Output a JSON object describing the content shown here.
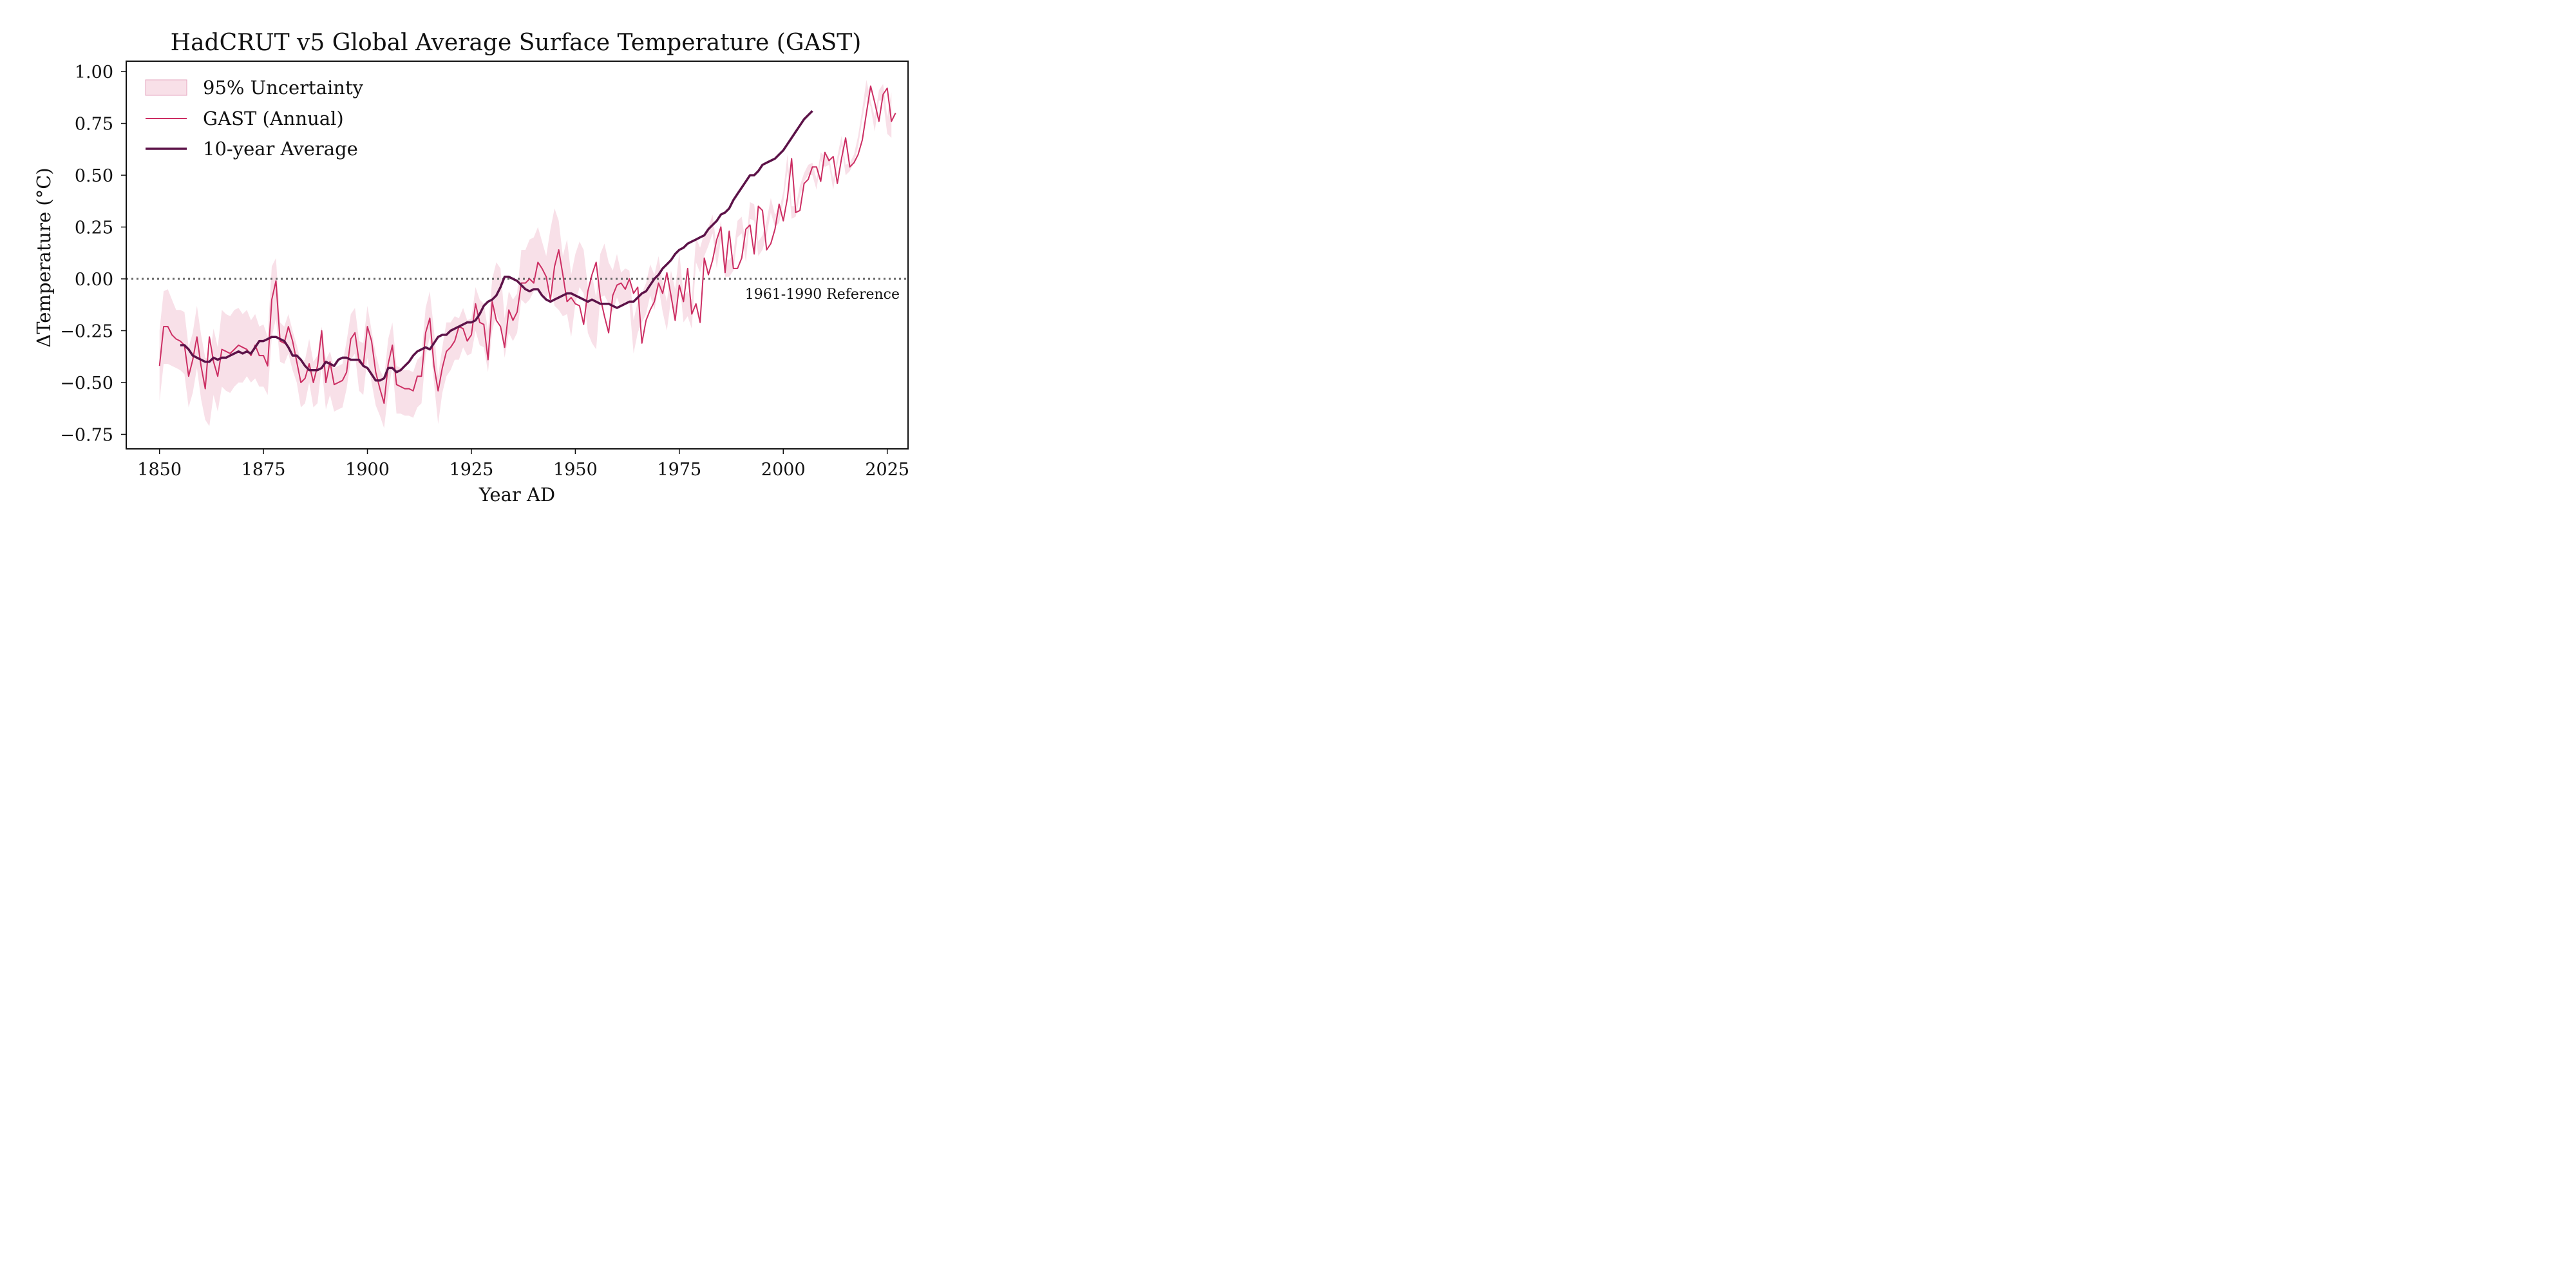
{
  "chart_data": {
    "type": "line",
    "title": "HadCRUT v5 Global Average Surface Temperature (GAST)",
    "xlabel": "Year AD",
    "ylabel": "ΔTemperature (°C)",
    "xlim": [
      1842,
      2030
    ],
    "ylim": [
      -0.82,
      1.05
    ],
    "xticks": [
      1850,
      1875,
      1900,
      1925,
      1950,
      1975,
      2000,
      2025
    ],
    "xtick_labels": [
      "1850",
      "1875",
      "1900",
      "1925",
      "1950",
      "1975",
      "2000",
      "2025"
    ],
    "yticks": [
      1.0,
      0.75,
      0.5,
      0.25,
      0.0,
      -0.25,
      -0.5,
      -0.75
    ],
    "ytick_labels": [
      "1.00",
      "0.75",
      "0.50",
      "0.25",
      "0.00",
      "−0.25",
      "−0.50",
      "−0.75"
    ],
    "grid": false,
    "legend_position": "top-left",
    "reference_line": {
      "y": 0.0,
      "label": "1961-1990 Reference",
      "color": "#666666",
      "style": "dotted"
    },
    "colors": {
      "band": "#f3cbd9",
      "annual": "#cc2e63",
      "average": "#5c1248"
    },
    "series": [
      {
        "name": "95% Uncertainty",
        "kind": "band",
        "x_start": 1850,
        "lower": [
          -0.59,
          -0.41,
          -0.41,
          -0.42,
          -0.43,
          -0.44,
          -0.46,
          -0.62,
          -0.55,
          -0.43,
          -0.58,
          -0.68,
          -0.71,
          -0.56,
          -0.64,
          -0.52,
          -0.54,
          -0.55,
          -0.52,
          -0.5,
          -0.5,
          -0.47,
          -0.5,
          -0.48,
          -0.52,
          -0.52,
          -0.56,
          -0.28,
          -0.19,
          -0.4,
          -0.41,
          -0.36,
          -0.44,
          -0.5,
          -0.62,
          -0.6,
          -0.5,
          -0.62,
          -0.6,
          -0.42,
          -0.63,
          -0.56,
          -0.64,
          -0.63,
          -0.62,
          -0.53,
          -0.39,
          -0.36,
          -0.54,
          -0.56,
          -0.38,
          -0.5,
          -0.61,
          -0.66,
          -0.72,
          -0.55,
          -0.42,
          -0.65,
          -0.65,
          -0.66,
          -0.66,
          -0.67,
          -0.62,
          -0.6,
          -0.37,
          -0.28,
          -0.5,
          -0.7,
          -0.55,
          -0.47,
          -0.44,
          -0.39,
          -0.39,
          -0.33,
          -0.37,
          -0.36,
          -0.25,
          -0.32,
          -0.33,
          -0.45,
          -0.25,
          -0.17,
          -0.22,
          -0.38,
          -0.26,
          -0.3,
          -0.26,
          -0.1,
          -0.12,
          -0.1,
          -0.06,
          -0.05,
          -0.08,
          -0.1,
          -0.03,
          -0.13,
          -0.15,
          -0.18,
          -0.17,
          -0.28,
          -0.12,
          -0.04,
          -0.07,
          -0.26,
          -0.31,
          -0.34,
          -0.09,
          -0.08,
          -0.12,
          -0.16,
          -0.09,
          -0.14,
          -0.11,
          -0.12,
          -0.36,
          -0.26,
          -0.21,
          -0.17,
          -0.08,
          -0.15,
          -0.04,
          -0.16,
          -0.25,
          -0.1,
          -0.19,
          -0.0,
          -0.21,
          -0.18,
          -0.24,
          0.08,
          0.03,
          0.11,
          0.16,
          0.22,
          0.05,
          0.19,
          0.01,
          0.01,
          0.04,
          0.2,
          0.22,
          0.08,
          0.29,
          0.28,
          0.11,
          0.14,
          0.21,
          0.32,
          0.25,
          0.27,
          0.37,
          0.52,
          0.29,
          0.3,
          0.4,
          0.47,
          0.5,
          0.5,
          0.43,
          0.57,
          0.54,
          0.55,
          0.43,
          0.55,
          0.64,
          0.5,
          0.52,
          0.56,
          0.64,
          0.77,
          0.88,
          0.83,
          0.71,
          0.86,
          0.86,
          0.7,
          0.68
        ],
        "upper": [
          -0.25,
          -0.06,
          -0.05,
          -0.1,
          -0.15,
          -0.15,
          -0.16,
          -0.33,
          -0.26,
          -0.13,
          -0.27,
          -0.38,
          -0.39,
          -0.24,
          -0.33,
          -0.15,
          -0.17,
          -0.18,
          -0.15,
          -0.14,
          -0.17,
          -0.15,
          -0.2,
          -0.17,
          -0.23,
          -0.22,
          -0.28,
          0.06,
          0.1,
          -0.21,
          -0.23,
          -0.17,
          -0.25,
          -0.32,
          -0.4,
          -0.39,
          -0.29,
          -0.4,
          -0.37,
          -0.23,
          -0.39,
          -0.35,
          -0.43,
          -0.42,
          -0.41,
          -0.3,
          -0.17,
          -0.14,
          -0.3,
          -0.31,
          -0.13,
          -0.25,
          -0.36,
          -0.44,
          -0.48,
          -0.29,
          -0.21,
          -0.42,
          -0.43,
          -0.44,
          -0.44,
          -0.45,
          -0.39,
          -0.37,
          -0.14,
          -0.06,
          -0.25,
          -0.47,
          -0.33,
          -0.21,
          -0.21,
          -0.18,
          -0.19,
          -0.14,
          -0.2,
          -0.19,
          -0.04,
          -0.1,
          -0.12,
          -0.25,
          -0.0,
          0.08,
          0.05,
          -0.19,
          -0.06,
          -0.1,
          -0.07,
          0.14,
          0.14,
          0.19,
          0.2,
          0.25,
          0.18,
          0.11,
          0.24,
          0.34,
          0.28,
          0.11,
          0.19,
          0.02,
          0.12,
          0.18,
          0.14,
          -0.04,
          0.02,
          -0.09,
          0.12,
          0.17,
          0.08,
          0.04,
          0.12,
          0.03,
          0.05,
          0.04,
          -0.2,
          -0.11,
          -0.07,
          -0.02,
          0.07,
          0.02,
          0.11,
          -0.02,
          -0.11,
          0.04,
          -0.05,
          0.13,
          -0.08,
          -0.06,
          -0.1,
          0.2,
          0.15,
          0.22,
          0.25,
          0.31,
          0.15,
          0.28,
          0.1,
          0.09,
          0.12,
          0.28,
          0.3,
          0.16,
          0.37,
          0.36,
          0.18,
          0.21,
          0.28,
          0.39,
          0.31,
          0.33,
          0.42,
          0.6,
          0.35,
          0.35,
          0.45,
          0.51,
          0.55,
          0.56,
          0.48,
          0.61,
          0.59,
          0.59,
          0.48,
          0.59,
          0.69,
          0.55,
          0.56,
          0.6,
          0.69,
          0.82,
          0.96,
          0.86,
          0.78,
          0.91,
          0.94,
          0.78,
          0.9
        ]
      },
      {
        "name": "GAST (Annual)",
        "kind": "line",
        "x_start": 1850,
        "values": [
          -0.42,
          -0.23,
          -0.23,
          -0.27,
          -0.29,
          -0.3,
          -0.32,
          -0.47,
          -0.39,
          -0.28,
          -0.42,
          -0.53,
          -0.28,
          -0.4,
          -0.47,
          -0.34,
          -0.35,
          -0.36,
          -0.34,
          -0.32,
          -0.33,
          -0.34,
          -0.37,
          -0.32,
          -0.37,
          -0.37,
          -0.42,
          -0.1,
          -0.01,
          -0.3,
          -0.31,
          -0.23,
          -0.3,
          -0.4,
          -0.5,
          -0.48,
          -0.41,
          -0.5,
          -0.42,
          -0.25,
          -0.5,
          -0.4,
          -0.51,
          -0.5,
          -0.49,
          -0.45,
          -0.29,
          -0.26,
          -0.4,
          -0.42,
          -0.23,
          -0.3,
          -0.45,
          -0.53,
          -0.6,
          -0.41,
          -0.32,
          -0.51,
          -0.52,
          -0.53,
          -0.53,
          -0.54,
          -0.47,
          -0.47,
          -0.26,
          -0.19,
          -0.42,
          -0.54,
          -0.43,
          -0.35,
          -0.33,
          -0.3,
          -0.23,
          -0.24,
          -0.3,
          -0.27,
          -0.12,
          -0.21,
          -0.22,
          -0.39,
          -0.11,
          -0.2,
          -0.23,
          -0.33,
          -0.15,
          -0.2,
          -0.16,
          -0.02,
          -0.02,
          0.0,
          -0.02,
          0.08,
          0.05,
          0.01,
          -0.1,
          0.06,
          0.14,
          0.02,
          -0.11,
          -0.09,
          -0.12,
          -0.13,
          -0.22,
          -0.06,
          0.02,
          0.08,
          -0.09,
          -0.18,
          -0.26,
          -0.08,
          -0.03,
          -0.02,
          -0.05,
          0.0,
          -0.07,
          -0.04,
          -0.31,
          -0.2,
          -0.15,
          -0.11,
          -0.02,
          -0.07,
          0.03,
          -0.08,
          -0.2,
          -0.03,
          -0.11,
          0.05,
          -0.17,
          -0.12,
          -0.21,
          0.1,
          0.02,
          0.09,
          0.19,
          0.25,
          0.03,
          0.23,
          0.05,
          0.05,
          0.1,
          0.24,
          0.26,
          0.12,
          0.35,
          0.33,
          0.14,
          0.17,
          0.24,
          0.36,
          0.28,
          0.39,
          0.58,
          0.32,
          0.33,
          0.46,
          0.48,
          0.54,
          0.54,
          0.47,
          0.61,
          0.57,
          0.59,
          0.46,
          0.58,
          0.68,
          0.54,
          0.56,
          0.6,
          0.67,
          0.8,
          0.93,
          0.85,
          0.76,
          0.89,
          0.92,
          0.76,
          0.8
        ]
      },
      {
        "name": "10-year Average",
        "kind": "line",
        "x_start": 1855,
        "values": [
          -0.32,
          -0.32,
          -0.34,
          -0.37,
          -0.38,
          -0.39,
          -0.4,
          -0.4,
          -0.38,
          -0.39,
          -0.38,
          -0.38,
          -0.37,
          -0.36,
          -0.35,
          -0.36,
          -0.35,
          -0.36,
          -0.33,
          -0.3,
          -0.3,
          -0.29,
          -0.28,
          -0.28,
          -0.29,
          -0.3,
          -0.33,
          -0.37,
          -0.37,
          -0.39,
          -0.42,
          -0.44,
          -0.44,
          -0.44,
          -0.43,
          -0.4,
          -0.41,
          -0.42,
          -0.39,
          -0.38,
          -0.38,
          -0.39,
          -0.39,
          -0.39,
          -0.42,
          -0.43,
          -0.46,
          -0.49,
          -0.49,
          -0.48,
          -0.43,
          -0.43,
          -0.45,
          -0.44,
          -0.42,
          -0.4,
          -0.37,
          -0.35,
          -0.34,
          -0.33,
          -0.34,
          -0.31,
          -0.28,
          -0.27,
          -0.27,
          -0.25,
          -0.24,
          -0.23,
          -0.22,
          -0.21,
          -0.21,
          -0.2,
          -0.17,
          -0.13,
          -0.11,
          -0.1,
          -0.08,
          -0.04,
          0.01,
          0.01,
          0.0,
          -0.01,
          -0.03,
          -0.05,
          -0.06,
          -0.05,
          -0.05,
          -0.08,
          -0.1,
          -0.11,
          -0.1,
          -0.09,
          -0.08,
          -0.07,
          -0.07,
          -0.08,
          -0.09,
          -0.1,
          -0.11,
          -0.1,
          -0.11,
          -0.12,
          -0.12,
          -0.12,
          -0.13,
          -0.14,
          -0.13,
          -0.12,
          -0.11,
          -0.11,
          -0.09,
          -0.07,
          -0.06,
          -0.03,
          0.0,
          0.02,
          0.05,
          0.07,
          0.09,
          0.12,
          0.14,
          0.15,
          0.17,
          0.18,
          0.19,
          0.2,
          0.21,
          0.24,
          0.26,
          0.28,
          0.31,
          0.32,
          0.34,
          0.38,
          0.41,
          0.44,
          0.47,
          0.5,
          0.5,
          0.52,
          0.55,
          0.56,
          0.57,
          0.58,
          0.6,
          0.62,
          0.65,
          0.68,
          0.71,
          0.74,
          0.77,
          0.79,
          0.81
        ]
      }
    ]
  }
}
